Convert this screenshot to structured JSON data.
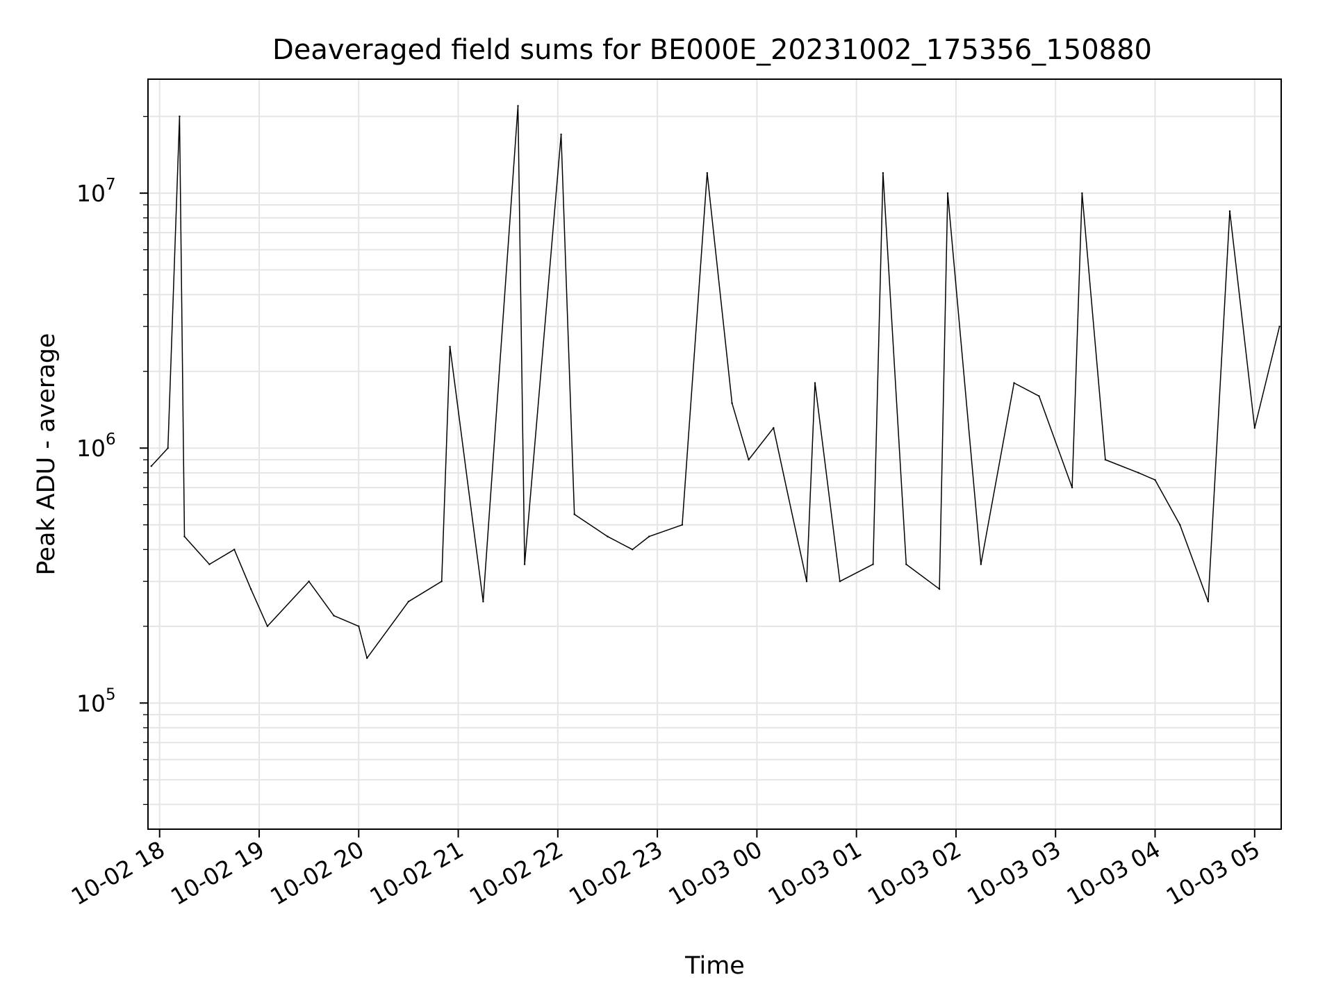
{
  "chart_data": {
    "type": "line",
    "title": "Deaveraged field sums for BE000E_20231002_175356_150880",
    "xlabel": "Time",
    "ylabel": "Peak ADU - average",
    "yscale": "log",
    "ylim": [
      32000,
      28000000
    ],
    "xlim": [
      "2023-10-02 17:53",
      "2023-10-03 05:16"
    ],
    "grid": true,
    "line_color": "#000000",
    "grid_color": "#e5e5e5",
    "x_ticks": [
      "10-02 18",
      "10-02 19",
      "10-02 20",
      "10-02 21",
      "10-02 22",
      "10-02 23",
      "10-03 00",
      "10-03 01",
      "10-03 02",
      "10-03 03",
      "10-03 04",
      "10-03 05"
    ],
    "y_ticks": [
      {
        "base": "10",
        "exp": "5",
        "value": 100000
      },
      {
        "base": "10",
        "exp": "6",
        "value": 1000000
      },
      {
        "base": "10",
        "exp": "7",
        "value": 10000000
      }
    ],
    "series": [
      {
        "name": "",
        "x": [
          "2023-10-02 17:55",
          "2023-10-02 18:05",
          "2023-10-02 18:12",
          "2023-10-02 18:15",
          "2023-10-02 18:30",
          "2023-10-02 18:45",
          "2023-10-02 18:55",
          "2023-10-02 19:05",
          "2023-10-02 19:30",
          "2023-10-02 19:45",
          "2023-10-02 20:00",
          "2023-10-02 20:05",
          "2023-10-02 20:30",
          "2023-10-02 20:50",
          "2023-10-02 20:55",
          "2023-10-02 21:15",
          "2023-10-02 21:36",
          "2023-10-02 21:40",
          "2023-10-02 22:02",
          "2023-10-02 22:10",
          "2023-10-02 22:30",
          "2023-10-02 22:45",
          "2023-10-02 22:55",
          "2023-10-02 23:15",
          "2023-10-02 23:30",
          "2023-10-02 23:45",
          "2023-10-02 23:55",
          "2023-10-03 00:10",
          "2023-10-03 00:30",
          "2023-10-03 00:35",
          "2023-10-03 00:50",
          "2023-10-03 01:10",
          "2023-10-03 01:16",
          "2023-10-03 01:30",
          "2023-10-03 01:50",
          "2023-10-03 01:55",
          "2023-10-03 02:15",
          "2023-10-03 02:35",
          "2023-10-03 02:50",
          "2023-10-03 03:10",
          "2023-10-03 03:16",
          "2023-10-03 03:30",
          "2023-10-03 03:50",
          "2023-10-03 04:00",
          "2023-10-03 04:15",
          "2023-10-03 04:32",
          "2023-10-03 04:45",
          "2023-10-03 05:00",
          "2023-10-03 05:15"
        ],
        "y": [
          850000,
          1000000,
          20000000,
          450000,
          350000,
          400000,
          280000,
          200000,
          300000,
          220000,
          200000,
          150000,
          250000,
          300000,
          2500000,
          250000,
          22000000,
          350000,
          17000000,
          550000,
          450000,
          400000,
          450000,
          500000,
          12000000,
          1500000,
          900000,
          1200000,
          300000,
          1800000,
          300000,
          350000,
          12000000,
          350000,
          280000,
          10000000,
          350000,
          1800000,
          1600000,
          700000,
          10000000,
          900000,
          800000,
          750000,
          500000,
          250000,
          8500000,
          1200000,
          3000000
        ]
      }
    ]
  }
}
